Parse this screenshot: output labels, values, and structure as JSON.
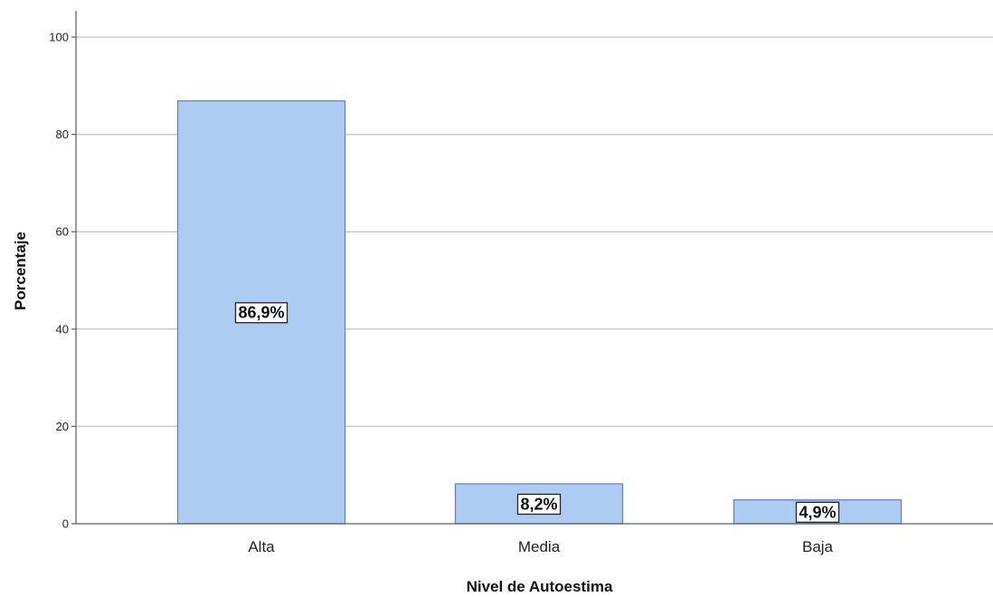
{
  "chart_data": {
    "type": "bar",
    "categories": [
      "Alta",
      "Media",
      "Baja"
    ],
    "values": [
      86.9,
      8.2,
      4.9
    ],
    "data_labels": [
      "86,9%",
      "8,2%",
      "4,9%"
    ],
    "xlabel": "Nivel de Autoestima",
    "ylabel": "Porcentaje",
    "ylim": [
      0,
      100
    ],
    "yticks": [
      0,
      20,
      40,
      60,
      80,
      100
    ],
    "grid": true,
    "bar_color": "#aecbf2",
    "bar_edge_color": "#5b7fc0"
  }
}
